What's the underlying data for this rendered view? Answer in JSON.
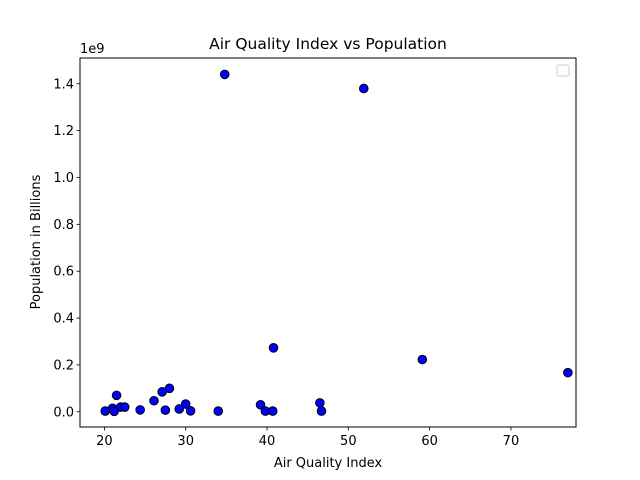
{
  "chart_data": {
    "type": "scatter",
    "title": "Air Quality Index vs Population",
    "xlabel": "Air Quality Index",
    "ylabel": "Population in Billions",
    "y_offset_text": "1e9",
    "xlim": [
      17,
      78
    ],
    "ylim": [
      -65000000,
      1510000000
    ],
    "x_ticks": [
      20,
      30,
      40,
      50,
      60,
      70
    ],
    "y_ticks": [
      0,
      200000000,
      400000000,
      600000000,
      800000000,
      1000000000,
      1200000000,
      1400000000
    ],
    "y_tick_labels": [
      "0.0",
      "0.2",
      "0.4",
      "0.6",
      "0.8",
      "1.0",
      "1.2",
      "1.4"
    ],
    "grid": false,
    "legend": "top-right (empty)",
    "marker_color": "#0000ff",
    "marker_edge_color": "#000000",
    "points": [
      {
        "x": 34.8,
        "y": 1440000000
      },
      {
        "x": 51.9,
        "y": 1380000000
      },
      {
        "x": 40.8,
        "y": 273000000
      },
      {
        "x": 59.1,
        "y": 223000000
      },
      {
        "x": 77.0,
        "y": 167000000
      },
      {
        "x": 28.0,
        "y": 100000000
      },
      {
        "x": 27.1,
        "y": 85000000
      },
      {
        "x": 21.5,
        "y": 70000000
      },
      {
        "x": 26.1,
        "y": 47000000
      },
      {
        "x": 46.5,
        "y": 38000000
      },
      {
        "x": 30.0,
        "y": 33000000
      },
      {
        "x": 39.2,
        "y": 30000000
      },
      {
        "x": 22.0,
        "y": 20000000
      },
      {
        "x": 22.5,
        "y": 20000000
      },
      {
        "x": 21.0,
        "y": 15000000
      },
      {
        "x": 29.2,
        "y": 12000000
      },
      {
        "x": 24.4,
        "y": 8000000
      },
      {
        "x": 27.5,
        "y": 7000000
      },
      {
        "x": 20.1,
        "y": 3000000
      },
      {
        "x": 21.2,
        "y": 2000000
      },
      {
        "x": 30.6,
        "y": 4000000
      },
      {
        "x": 34.0,
        "y": 3000000
      },
      {
        "x": 39.8,
        "y": 3000000
      },
      {
        "x": 40.7,
        "y": 3000000
      },
      {
        "x": 46.7,
        "y": 3000000
      }
    ]
  }
}
